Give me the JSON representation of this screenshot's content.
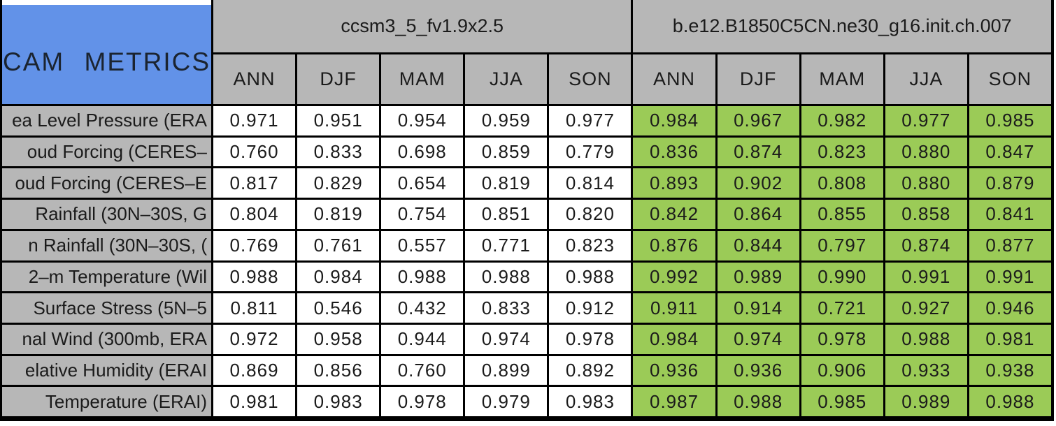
{
  "chart_data": {
    "type": "table",
    "title": "CAM METRICS",
    "column_groups": [
      "ccsm3_5_fv1.9x2.5",
      "b.e12.B1850C5CN.ne30_g16.init.ch.007"
    ],
    "seasons": [
      "ANN",
      "DJF",
      "MAM",
      "JJA",
      "SON"
    ],
    "rows": [
      {
        "label": "ea Level Pressure (ERA",
        "group1": [
          "0.971",
          "0.951",
          "0.954",
          "0.959",
          "0.977"
        ],
        "group2": [
          "0.984",
          "0.967",
          "0.982",
          "0.977",
          "0.985"
        ]
      },
      {
        "label": "oud Forcing (CERES–",
        "group1": [
          "0.760",
          "0.833",
          "0.698",
          "0.859",
          "0.779"
        ],
        "group2": [
          "0.836",
          "0.874",
          "0.823",
          "0.880",
          "0.847"
        ]
      },
      {
        "label": "oud Forcing (CERES–E",
        "group1": [
          "0.817",
          "0.829",
          "0.654",
          "0.819",
          "0.814"
        ],
        "group2": [
          "0.893",
          "0.902",
          "0.808",
          "0.880",
          "0.879"
        ]
      },
      {
        "label": "Rainfall (30N–30S, G",
        "group1": [
          "0.804",
          "0.819",
          "0.754",
          "0.851",
          "0.820"
        ],
        "group2": [
          "0.842",
          "0.864",
          "0.855",
          "0.858",
          "0.841"
        ]
      },
      {
        "label": "n Rainfall (30N–30S, (",
        "group1": [
          "0.769",
          "0.761",
          "0.557",
          "0.771",
          "0.823"
        ],
        "group2": [
          "0.876",
          "0.844",
          "0.797",
          "0.874",
          "0.877"
        ]
      },
      {
        "label": "2–m Temperature (Wil",
        "group1": [
          "0.988",
          "0.984",
          "0.988",
          "0.988",
          "0.988"
        ],
        "group2": [
          "0.992",
          "0.989",
          "0.990",
          "0.991",
          "0.991"
        ]
      },
      {
        "label": "Surface Stress (5N–5",
        "group1": [
          "0.811",
          "0.546",
          "0.432",
          "0.833",
          "0.912"
        ],
        "group2": [
          "0.911",
          "0.914",
          "0.721",
          "0.927",
          "0.946"
        ]
      },
      {
        "label": "nal Wind (300mb, ERA",
        "group1": [
          "0.972",
          "0.958",
          "0.944",
          "0.974",
          "0.978"
        ],
        "group2": [
          "0.984",
          "0.974",
          "0.978",
          "0.988",
          "0.981"
        ]
      },
      {
        "label": "elative Humidity (ERAI",
        "group1": [
          "0.869",
          "0.856",
          "0.760",
          "0.899",
          "0.892"
        ],
        "group2": [
          "0.936",
          "0.936",
          "0.906",
          "0.933",
          "0.938"
        ]
      },
      {
        "label": "Temperature (ERAI)",
        "group1": [
          "0.981",
          "0.983",
          "0.978",
          "0.979",
          "0.983"
        ],
        "group2": [
          "0.987",
          "0.988",
          "0.985",
          "0.989",
          "0.988"
        ]
      }
    ],
    "colors": {
      "title_cell_blue": "#6292e8",
      "header_gray": "#b7b7b7",
      "group1_cell": "#ffffff",
      "group2_cell": "#9bcb57",
      "grid_border": "#000000",
      "text": "#1b1b1b"
    },
    "layout": {
      "grid_on": true,
      "group1_style": "white cells",
      "group2_style": "green cells",
      "label_column_clipped_left": true
    }
  }
}
